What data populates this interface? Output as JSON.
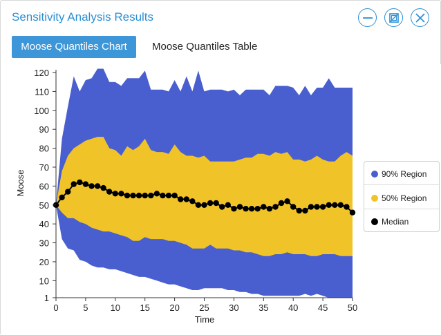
{
  "window": {
    "title": "Sensitivity Analysis Results",
    "minimize_icon": "minus-circle-icon",
    "maximize_icon": "restore-window-icon",
    "close_icon": "close-circle-icon",
    "accent_color": "#2a8fd4"
  },
  "tabs": [
    {
      "label": "Moose Quantiles Chart",
      "active": true
    },
    {
      "label": "Moose Quantiles Table",
      "active": false
    }
  ],
  "chart_data": {
    "type": "area",
    "xlabel": "Time",
    "ylabel": "Moose",
    "xlim": [
      0,
      50
    ],
    "ylim": [
      1,
      120
    ],
    "xticks": [
      0,
      5,
      10,
      15,
      20,
      25,
      30,
      35,
      40,
      45,
      50
    ],
    "yticks": [
      1,
      10,
      20,
      30,
      40,
      50,
      60,
      70,
      80,
      90,
      100,
      110,
      120
    ],
    "legend_position": "right",
    "grid": false,
    "x": [
      0,
      1,
      2,
      3,
      4,
      5,
      6,
      7,
      8,
      9,
      10,
      11,
      12,
      13,
      14,
      15,
      16,
      17,
      18,
      19,
      20,
      21,
      22,
      23,
      24,
      25,
      26,
      27,
      28,
      29,
      30,
      31,
      32,
      33,
      34,
      35,
      36,
      37,
      38,
      39,
      40,
      41,
      42,
      43,
      44,
      45,
      46,
      47,
      48,
      49,
      50
    ],
    "series": [
      {
        "name": "90% Region",
        "color": "#4a5fcf",
        "upper": [
          50,
          85,
          102,
          118,
          110,
          116,
          117,
          122,
          122,
          115,
          115,
          113,
          117,
          117,
          117,
          121,
          111,
          111,
          111,
          110,
          116,
          110,
          118,
          110,
          121,
          110,
          111,
          111,
          111,
          110,
          111,
          108,
          111,
          111,
          111,
          111,
          108,
          113,
          113,
          113,
          112,
          108,
          113,
          108,
          112,
          112,
          117,
          112,
          112,
          112,
          112
        ],
        "lower": [
          50,
          32,
          27,
          26,
          21,
          20,
          18,
          17,
          17,
          16,
          16,
          15,
          14,
          13,
          12,
          12,
          11,
          10,
          9,
          8,
          8,
          7,
          6,
          5,
          5,
          6,
          6,
          6,
          6,
          5,
          5,
          4,
          4,
          3,
          3,
          2,
          2,
          2,
          2,
          2,
          2,
          2,
          3,
          2,
          3,
          2,
          1,
          1,
          1,
          1,
          1
        ]
      },
      {
        "name": "50% Region",
        "color": "#f0c428",
        "upper": [
          50,
          68,
          76,
          80,
          82,
          84,
          85,
          86,
          86,
          80,
          79,
          76,
          81,
          79,
          81,
          85,
          79,
          78,
          78,
          77,
          82,
          78,
          76,
          76,
          75,
          76,
          73,
          73,
          73,
          73,
          73,
          74,
          75,
          75,
          77,
          77,
          76,
          78,
          77,
          78,
          74,
          74,
          73,
          74,
          76,
          74,
          73,
          73,
          76,
          78,
          76
        ],
        "lower": [
          50,
          46,
          43,
          43,
          41,
          40,
          38,
          37,
          36,
          36,
          35,
          34,
          33,
          31,
          31,
          33,
          32,
          32,
          32,
          31,
          31,
          30,
          29,
          27,
          27,
          27,
          29,
          27,
          27,
          27,
          26,
          26,
          25,
          25,
          24,
          23,
          23,
          24,
          24,
          25,
          24,
          24,
          24,
          23,
          23,
          24,
          24,
          24,
          23,
          23,
          23
        ]
      },
      {
        "name": "Median",
        "color": "#000000",
        "values": [
          50,
          54,
          57,
          61,
          62,
          61,
          60,
          60,
          59,
          57,
          56,
          56,
          55,
          55,
          55,
          55,
          55,
          56,
          55,
          55,
          55,
          53,
          53,
          52,
          50,
          50,
          51,
          51,
          49,
          50,
          48,
          49,
          48,
          48,
          48,
          49,
          48,
          49,
          51,
          52,
          49,
          47,
          47,
          49,
          49,
          49,
          50,
          50,
          50,
          49,
          46
        ]
      }
    ]
  }
}
